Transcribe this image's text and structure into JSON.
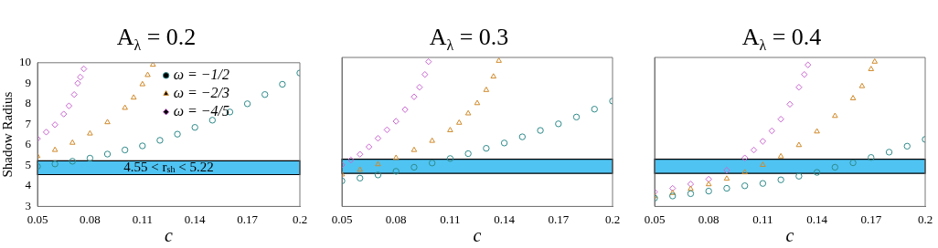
{
  "chart_data": [
    {
      "type": "scatter",
      "title": "A$_{λ}$ = 0.2",
      "xlabel": "c",
      "ylabel": "Shadow Radius",
      "xlim": [
        0.05,
        0.2
      ],
      "ylim": [
        3,
        10
      ],
      "xticks": [
        0.05,
        0.08,
        0.11,
        0.14,
        0.17,
        0.2
      ],
      "yticks": [
        3,
        4,
        5,
        6,
        7,
        8,
        9,
        10
      ],
      "grid": false,
      "legend": "top right",
      "bands": [
        {
          "axis": "y",
          "from": 4.55,
          "to": 5.22,
          "label": "4.55 < r$_{sh}$ < 5.22",
          "color": "#4fc3f2"
        }
      ],
      "series": [
        {
          "name": "ω = −1/2",
          "color": "#2f8a8a",
          "marker": "circle",
          "x": [
            0.05,
            0.06,
            0.07,
            0.08,
            0.09,
            0.1,
            0.11,
            0.12,
            0.13,
            0.14,
            0.15,
            0.16,
            0.17,
            0.18,
            0.19,
            0.2
          ],
          "values": [
            4.95,
            5.07,
            5.2,
            5.35,
            5.55,
            5.75,
            5.95,
            6.22,
            6.52,
            6.85,
            7.2,
            7.6,
            8.0,
            8.45,
            8.95,
            9.5
          ]
        },
        {
          "name": "ω = −2/3",
          "color": "#d08a2a",
          "marker": "triangle",
          "x": [
            0.05,
            0.06,
            0.07,
            0.08,
            0.09,
            0.1,
            0.105,
            0.11,
            0.113,
            0.116
          ],
          "values": [
            5.45,
            5.75,
            6.1,
            6.55,
            7.1,
            7.8,
            8.3,
            8.95,
            9.4,
            9.9
          ]
        },
        {
          "name": "ω = −4/5",
          "color": "#c966d0",
          "marker": "diamond",
          "x": [
            0.05,
            0.055,
            0.06,
            0.065,
            0.068,
            0.071,
            0.073,
            0.0745,
            0.0765
          ],
          "values": [
            6.3,
            6.62,
            6.98,
            7.5,
            7.9,
            8.45,
            9.0,
            9.3,
            9.7
          ]
        }
      ]
    },
    {
      "type": "scatter",
      "title": "A$_{λ}$ = 0.3",
      "xlabel": "c",
      "xlim": [
        0.05,
        0.2
      ],
      "ylim": [
        3,
        10
      ],
      "xticks": [
        0.05,
        0.08,
        0.11,
        0.14,
        0.17,
        0.2
      ],
      "yticks": [
        3,
        4,
        5,
        6,
        7,
        8,
        9,
        10
      ],
      "tick_labels": "x",
      "grid": false,
      "bands": [
        {
          "axis": "y",
          "from": 4.55,
          "to": 5.22,
          "color": "#4fc3f2"
        }
      ],
      "series": [
        {
          "color": "#2f8a8a",
          "marker": "circle",
          "x": [
            0.05,
            0.06,
            0.07,
            0.08,
            0.09,
            0.1,
            0.11,
            0.12,
            0.13,
            0.14,
            0.15,
            0.16,
            0.17,
            0.18,
            0.19,
            0.2
          ],
          "values": [
            4.2,
            4.33,
            4.48,
            4.65,
            4.84,
            5.04,
            5.25,
            5.48,
            5.73,
            5.98,
            6.27,
            6.57,
            6.88,
            7.2,
            7.57,
            7.95
          ]
        },
        {
          "color": "#d08a2a",
          "marker": "triangle",
          "x": [
            0.05,
            0.06,
            0.07,
            0.08,
            0.09,
            0.1,
            0.11,
            0.115,
            0.12,
            0.125,
            0.13,
            0.134,
            0.137
          ],
          "values": [
            4.5,
            4.72,
            4.98,
            5.28,
            5.65,
            6.08,
            6.58,
            6.93,
            7.37,
            7.85,
            8.47,
            9.1,
            9.84
          ]
        },
        {
          "color": "#c966d0",
          "marker": "diamond",
          "x": [
            0.05,
            0.055,
            0.06,
            0.065,
            0.07,
            0.075,
            0.08,
            0.085,
            0.09,
            0.093,
            0.096,
            0.098
          ],
          "values": [
            4.95,
            5.18,
            5.45,
            5.8,
            6.2,
            6.6,
            7.0,
            7.55,
            8.15,
            8.6,
            9.2,
            9.8
          ]
        }
      ]
    },
    {
      "type": "scatter",
      "title": "A$_{λ}$ = 0.4",
      "xlabel": "c",
      "xlim": [
        0.05,
        0.2
      ],
      "ylim": [
        3,
        10
      ],
      "xticks": [
        0.05,
        0.08,
        0.11,
        0.14,
        0.17,
        0.2
      ],
      "yticks": [
        3,
        4,
        5,
        6,
        7,
        8,
        9,
        10
      ],
      "tick_labels": "x",
      "grid": false,
      "bands": [
        {
          "axis": "y",
          "from": 4.55,
          "to": 5.22,
          "color": "#4fc3f2"
        }
      ],
      "series": [
        {
          "color": "#2f8a8a",
          "marker": "circle",
          "x": [
            0.05,
            0.06,
            0.07,
            0.08,
            0.09,
            0.1,
            0.11,
            0.12,
            0.13,
            0.14,
            0.15,
            0.16,
            0.17,
            0.18,
            0.19,
            0.2
          ],
          "values": [
            3.39,
            3.49,
            3.6,
            3.72,
            3.85,
            3.97,
            4.08,
            4.25,
            4.42,
            4.6,
            4.84,
            5.05,
            5.3,
            5.55,
            5.83,
            6.15
          ]
        },
        {
          "color": "#d08a2a",
          "marker": "triangle",
          "x": [
            0.05,
            0.06,
            0.07,
            0.08,
            0.09,
            0.1,
            0.11,
            0.12,
            0.13,
            0.14,
            0.15,
            0.16,
            0.165,
            0.17,
            0.172
          ],
          "values": [
            3.48,
            3.63,
            3.82,
            4.04,
            4.3,
            4.6,
            4.95,
            5.35,
            5.88,
            6.52,
            7.25,
            8.08,
            8.65,
            9.45,
            9.8
          ]
        },
        {
          "color": "#c966d0",
          "marker": "diamond",
          "x": [
            0.05,
            0.06,
            0.07,
            0.08,
            0.09,
            0.1,
            0.105,
            0.11,
            0.115,
            0.12,
            0.125,
            0.13,
            0.133,
            0.135
          ],
          "values": [
            3.68,
            3.85,
            4.05,
            4.28,
            4.7,
            5.28,
            5.65,
            6.06,
            6.55,
            7.1,
            7.8,
            8.6,
            9.2,
            9.65
          ]
        }
      ]
    }
  ]
}
